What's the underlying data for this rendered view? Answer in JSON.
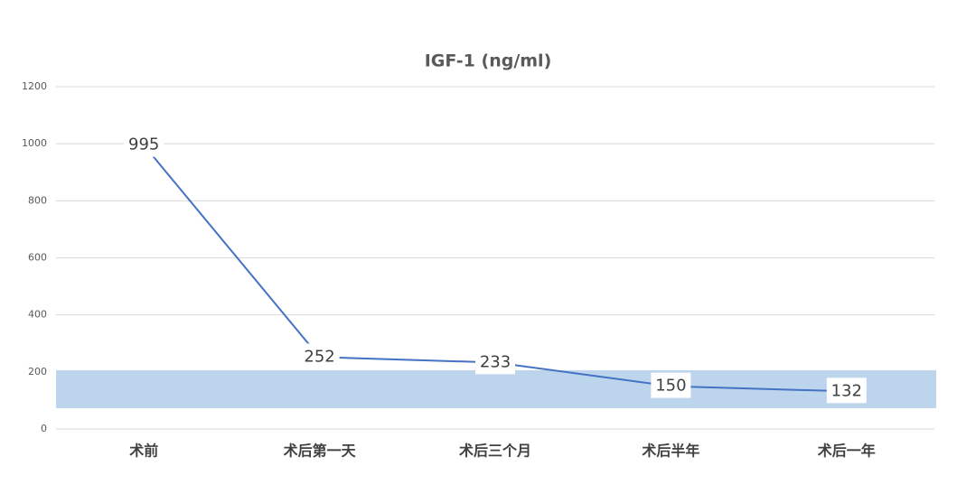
{
  "chart_data": {
    "type": "line",
    "title": "IGF-1 (ng/ml)",
    "categories": [
      "术前",
      "术后第一天",
      "术后三个月",
      "术后半年",
      "术后一年"
    ],
    "series": [
      {
        "color": "#4472c4",
        "values": [
          995,
          252,
          233,
          150,
          132
        ]
      }
    ],
    "reference_band": [
      73,
      206
    ],
    "reference_band_color": "#bdd5ec",
    "ylim": [
      0,
      1200
    ],
    "yticks": [
      0,
      200,
      400,
      600,
      800,
      1000,
      1200
    ],
    "grid": true
  }
}
